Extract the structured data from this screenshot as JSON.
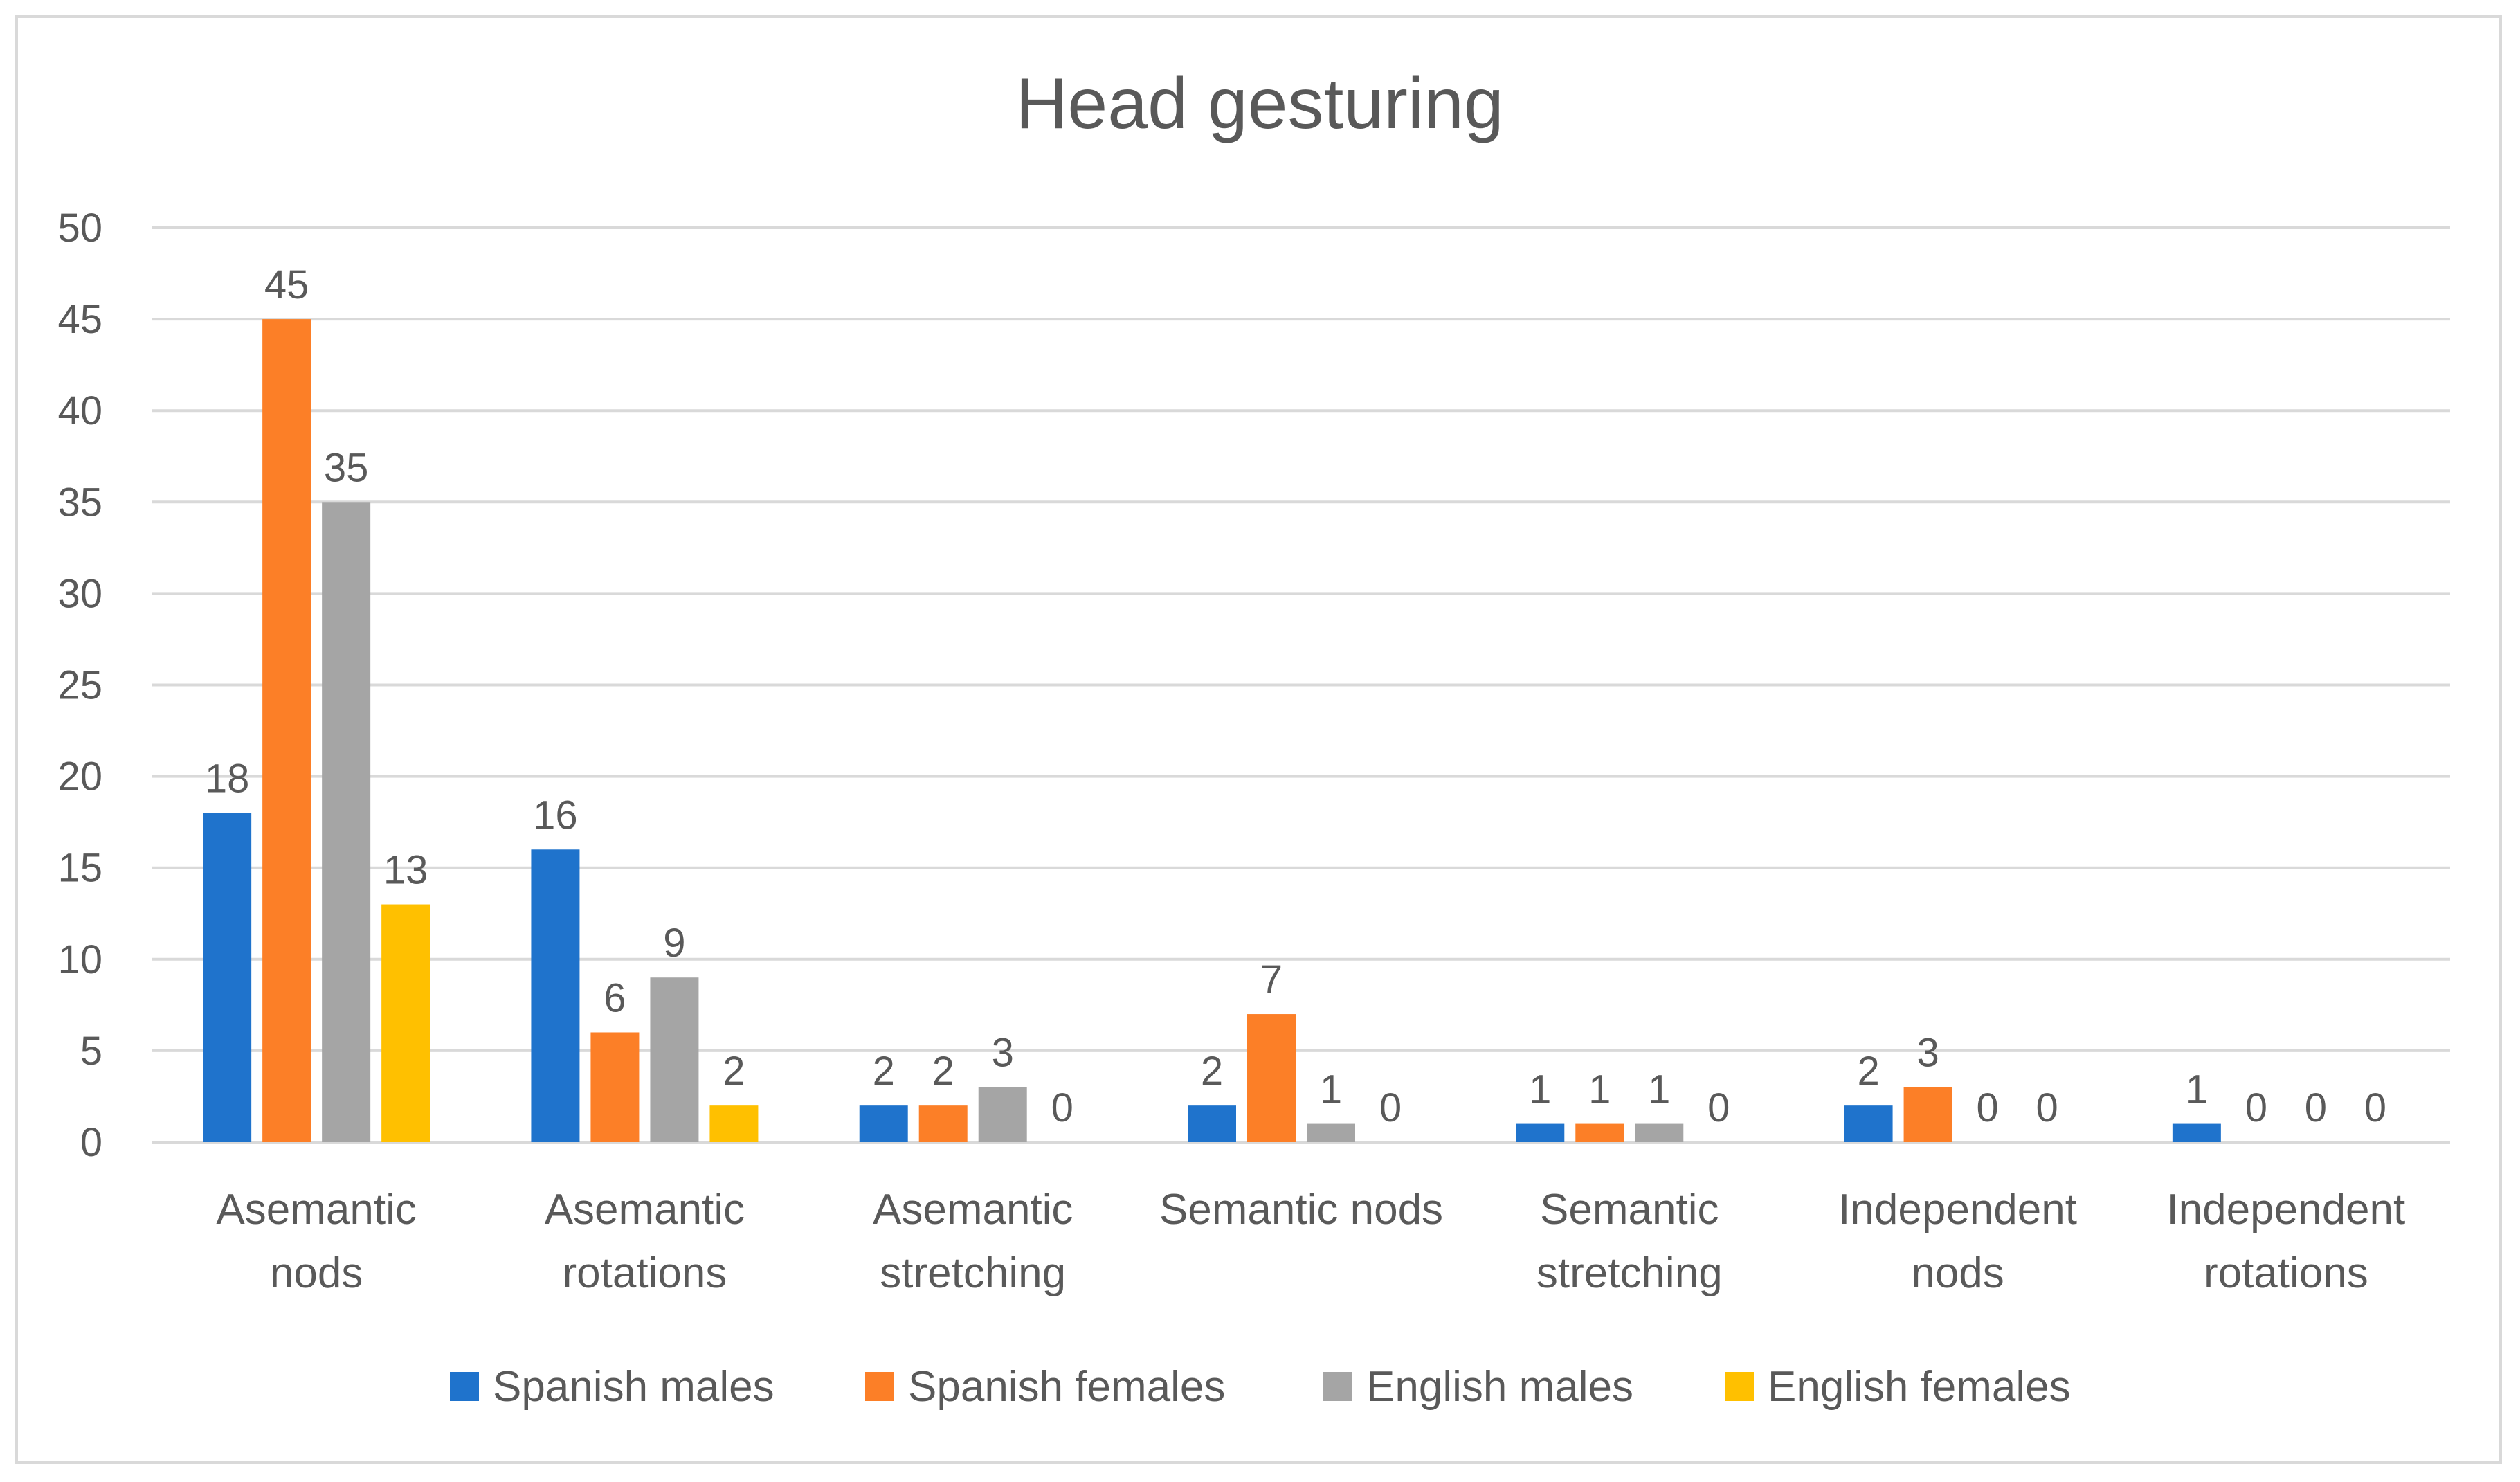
{
  "chart_data": {
    "type": "bar",
    "title": "Head gesturing",
    "categories": [
      [
        "Asemantic",
        "nods"
      ],
      [
        "Asemantic",
        "rotations"
      ],
      [
        "Asemantic",
        "stretching"
      ],
      [
        "Semantic nods"
      ],
      [
        "Semantic",
        "stretching"
      ],
      [
        "Independent",
        "nods"
      ],
      [
        "Independent",
        "rotations"
      ]
    ],
    "series": [
      {
        "name": "Spanish males",
        "color": "#1f73cc",
        "values": [
          18,
          16,
          2,
          2,
          1,
          2,
          1
        ]
      },
      {
        "name": "Spanish females",
        "color": "#fc7f27",
        "values": [
          45,
          6,
          2,
          7,
          1,
          3,
          0
        ]
      },
      {
        "name": "English males",
        "color": "#a5a5a5",
        "values": [
          35,
          9,
          3,
          1,
          1,
          0,
          0
        ]
      },
      {
        "name": "English females",
        "color": "#ffc000",
        "values": [
          13,
          2,
          0,
          0,
          0,
          0,
          0
        ]
      }
    ],
    "yticks": [
      0,
      5,
      10,
      15,
      20,
      25,
      30,
      35,
      40,
      45,
      50
    ],
    "ylim": [
      0,
      50
    ],
    "grid": true,
    "legend": "bottom",
    "data_labels": true
  }
}
